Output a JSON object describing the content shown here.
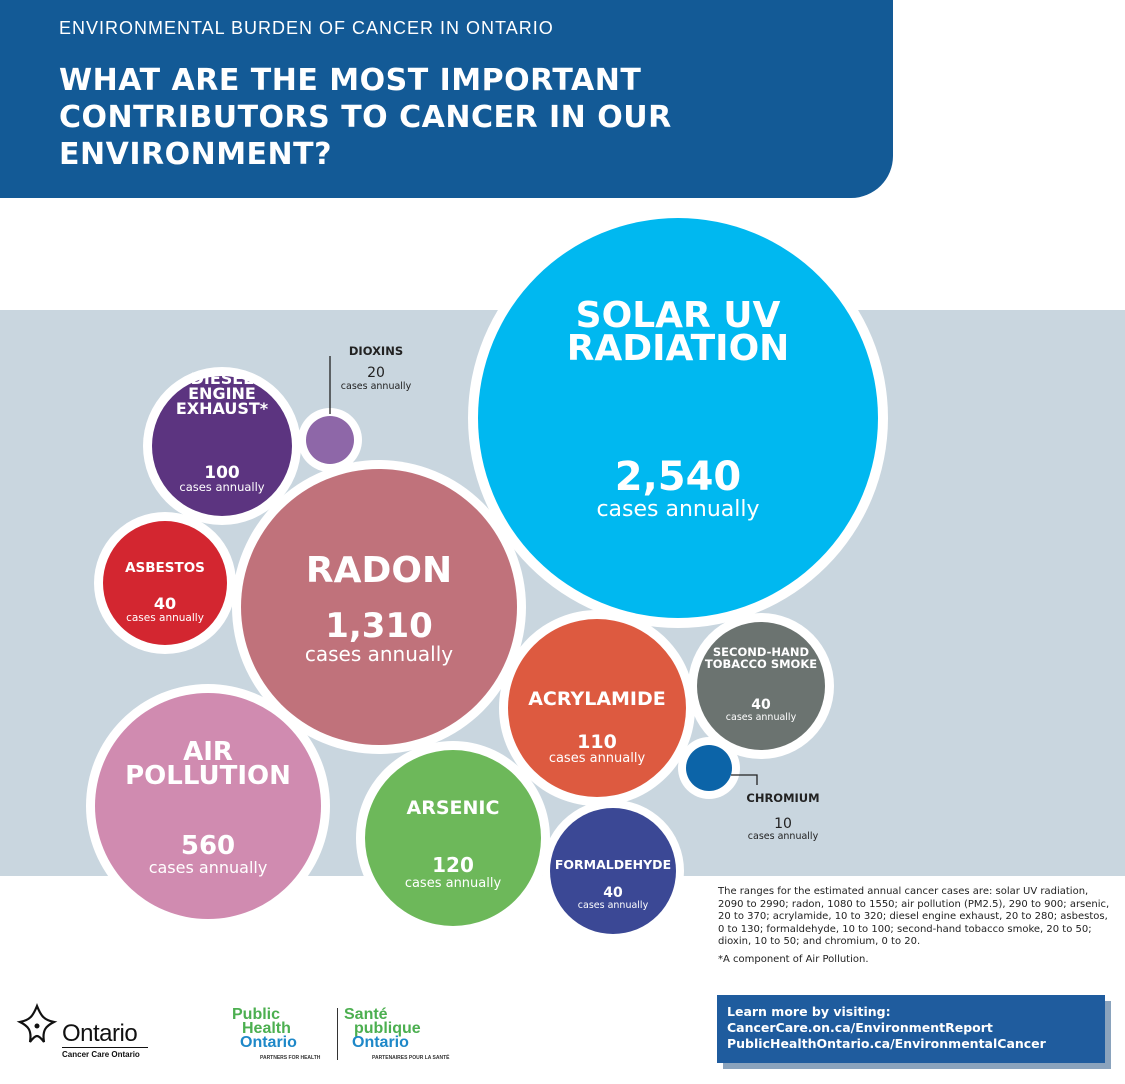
{
  "header": {
    "kicker": "ENVIRONMENTAL BURDEN OF CANCER IN ONTARIO",
    "headline_lines": [
      "WHAT ARE THE MOST IMPORTANT",
      "CONTRIBUTORS TO CANCER IN OUR",
      "ENVIRONMENT?"
    ]
  },
  "colors": {
    "banner": "#135a96",
    "panel": "#c9d6df"
  },
  "chart_data": {
    "type": "bubble",
    "unit_label": "cases annually",
    "bubbles": [
      {
        "label": [
          "SOLAR UV",
          "RADIATION"
        ],
        "value": 2540,
        "value_text": "2,540",
        "color": "#00b8f0"
      },
      {
        "label": [
          "RADON"
        ],
        "value": 1310,
        "value_text": "1,310",
        "color": "#c0727b"
      },
      {
        "label": [
          "AIR",
          "POLLUTION"
        ],
        "value": 560,
        "value_text": "560",
        "color": "#d08bb0"
      },
      {
        "label": [
          "ARSENIC"
        ],
        "value": 120,
        "value_text": "120",
        "color": "#6db85a"
      },
      {
        "label": [
          "ACRYLAMIDE"
        ],
        "value": 110,
        "value_text": "110",
        "color": "#dd5a40"
      },
      {
        "label": [
          "DIESEL",
          "ENGINE",
          "EXHAUST*"
        ],
        "value": 100,
        "value_text": "100",
        "color": "#5c3480"
      },
      {
        "label": [
          "ASBESTOS"
        ],
        "value": 40,
        "value_text": "40",
        "color": "#d32630"
      },
      {
        "label": [
          "FORMALDEHYDE"
        ],
        "value": 40,
        "value_text": "40",
        "color": "#3b4895"
      },
      {
        "label": [
          "SECOND-HAND",
          "TOBACCO SMOKE"
        ],
        "value": 40,
        "value_text": "40",
        "color": "#6b7370"
      },
      {
        "label": [
          "DIOXINS"
        ],
        "value": 20,
        "value_text": "20",
        "color": "#8e67a8"
      },
      {
        "label": [
          "CHROMIUM"
        ],
        "value": 10,
        "value_text": "10",
        "color": "#0c64a8"
      }
    ]
  },
  "notes": {
    "ranges_lines": [
      "The ranges for the estimated annual cancer cases are: solar UV radiation,",
      "2090 to 2990; radon, 1080 to 1550; air pollution (PM2.5), 290 to 900; arsenic,",
      "20 to 370; acrylamide, 10 to 320; diesel engine exhaust, 20 to 280; asbestos,",
      "0 to 130; formaldehyde, 10 to 100; second-hand tobacco smoke, 20 to 50;",
      "dioxin, 10 to 50; and chromium, 0 to 20."
    ],
    "footnote": "*A component of Air Pollution."
  },
  "learn_more": {
    "heading": "Learn more by visiting:",
    "link1": "CancerCare.on.ca/EnvironmentReport",
    "link2": "PublicHealthOntario.ca/EnvironmentalCancer"
  },
  "logos": {
    "ontario": "Ontario",
    "ontario_sub": "Cancer Care Ontario",
    "pho_en": [
      "Public",
      "Health",
      "Ontario"
    ],
    "pho_fr": [
      "Santé",
      "publique",
      "Ontario"
    ],
    "pho_tag_en": "PARTNERS FOR HEALTH",
    "pho_tag_fr": "PARTENAIRES POUR LA SANTÉ"
  }
}
